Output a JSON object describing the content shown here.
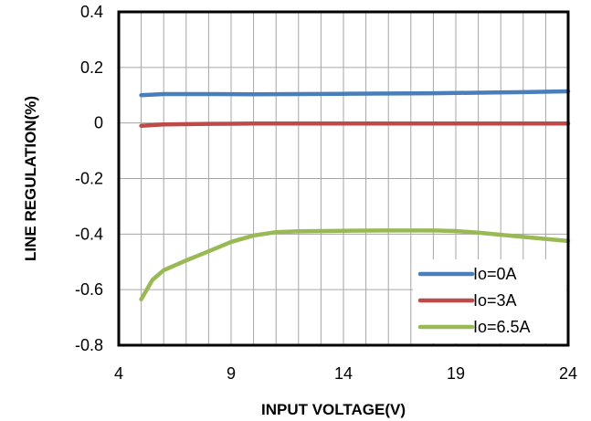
{
  "chart_data": {
    "type": "line",
    "xlabel": "INPUT VOLTAGE(V)",
    "ylabel": "LINE REGULATION(%)",
    "xlim": [
      4,
      24
    ],
    "ylim": [
      -0.8,
      0.4
    ],
    "x_ticks": [
      "4",
      "9",
      "14",
      "19",
      "24"
    ],
    "y_ticks": [
      "0.4",
      "0.2",
      "0",
      "-0.2",
      "-0.4",
      "-0.6",
      "-0.8"
    ],
    "x_tick_values": [
      4,
      9,
      14,
      19,
      24
    ],
    "y_tick_values": [
      0.4,
      0.2,
      0,
      -0.2,
      -0.4,
      -0.6,
      -0.8
    ],
    "x_minor_step": 1,
    "grid": true,
    "legend_position": "bottom-right",
    "series": [
      {
        "name": "Io=0A",
        "color": "#4a7ebb",
        "x": [
          5,
          6,
          8,
          10,
          12,
          14,
          16,
          18,
          20,
          22,
          24
        ],
        "y": [
          0.1,
          0.104,
          0.104,
          0.103,
          0.104,
          0.105,
          0.106,
          0.107,
          0.109,
          0.111,
          0.114
        ]
      },
      {
        "name": "Io=3A",
        "color": "#be4b48",
        "x": [
          5,
          6,
          8,
          10,
          12,
          14,
          16,
          18,
          20,
          22,
          24
        ],
        "y": [
          -0.01,
          -0.005,
          -0.003,
          -0.002,
          -0.002,
          -0.002,
          -0.002,
          -0.002,
          -0.002,
          -0.002,
          -0.002
        ]
      },
      {
        "name": "Io=6.5A",
        "color": "#98b954",
        "x": [
          5,
          5.5,
          6,
          7,
          8,
          9,
          10,
          11,
          12,
          14,
          16,
          18,
          19,
          20,
          22,
          24
        ],
        "y": [
          -0.635,
          -0.565,
          -0.53,
          -0.495,
          -0.462,
          -0.428,
          -0.405,
          -0.393,
          -0.39,
          -0.388,
          -0.387,
          -0.387,
          -0.389,
          -0.395,
          -0.41,
          -0.425
        ]
      }
    ]
  }
}
